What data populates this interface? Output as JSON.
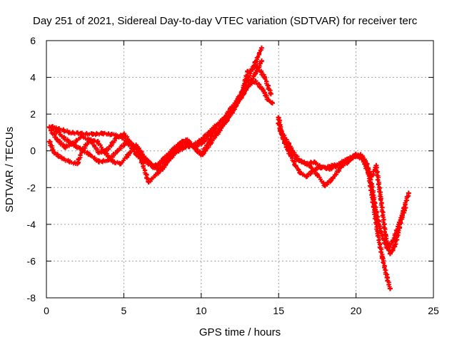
{
  "chart_data": {
    "type": "scatter",
    "title": "Day 251 of 2021, Sidereal Day-to-day VTEC variation (SDTVAR) for receiver terc",
    "xlabel": "GPS time / hours",
    "ylabel": "SDTVAR / TECUs",
    "xlim": [
      0,
      25
    ],
    "ylim": [
      -8,
      6
    ],
    "xticks": [
      "0",
      "5",
      "10",
      "15",
      "20",
      "25"
    ],
    "yticks": [
      "6",
      "4",
      "2",
      "0",
      "-2",
      "-4",
      "-6",
      "-8"
    ],
    "grid": true,
    "marker": "plus",
    "colors": {
      "series": "#ff0000",
      "grid": "#a0a0a0",
      "axis": "#000000"
    },
    "series": [
      {
        "name": "trace-1",
        "x": [
          0.2,
          0.8,
          1.5,
          2.2,
          3.0,
          3.6,
          4.2,
          4.8,
          5.3,
          5.8,
          6.3,
          6.9,
          7.5,
          8.0,
          8.5,
          9.0,
          9.5,
          10.0,
          10.5,
          11.0,
          11.5,
          12.0,
          12.5,
          13.0,
          13.5,
          13.9
        ],
        "y": [
          1.3,
          1.2,
          1.0,
          0.95,
          0.9,
          0.95,
          0.9,
          0.8,
          0.4,
          -0.2,
          -0.5,
          -0.9,
          -1.0,
          -0.4,
          0.0,
          0.2,
          0.3,
          0.6,
          1.0,
          1.4,
          1.8,
          2.2,
          3.0,
          3.9,
          4.8,
          5.6
        ]
      },
      {
        "name": "trace-2",
        "x": [
          0.2,
          0.5,
          1.0,
          1.5,
          2.0,
          2.3,
          2.8,
          3.3,
          3.8,
          4.3,
          4.8,
          5.3,
          5.8,
          6.3,
          6.7,
          7.1,
          7.6,
          8.1,
          8.6,
          9.1,
          9.6,
          10.1,
          10.6,
          11.1,
          11.6,
          12.0,
          12.5,
          13.0,
          13.5,
          13.9
        ],
        "y": [
          0.5,
          -0.1,
          -0.4,
          -0.6,
          -0.7,
          0.0,
          0.6,
          0.5,
          -0.1,
          -0.6,
          -0.7,
          -0.2,
          0.3,
          -0.3,
          -0.7,
          -0.8,
          -0.6,
          -0.1,
          0.4,
          0.6,
          0.1,
          -0.2,
          0.4,
          1.0,
          1.6,
          2.1,
          2.8,
          3.5,
          4.2,
          4.9
        ]
      },
      {
        "name": "trace-3",
        "x": [
          0.3,
          0.7,
          1.2,
          1.7,
          2.3,
          2.9,
          3.4,
          4.0,
          4.5,
          5.0,
          5.5,
          6.0,
          6.6,
          7.2,
          7.8,
          8.4,
          9.0,
          9.6,
          10.2,
          10.8,
          11.4,
          12.0,
          12.6,
          13.0,
          13.6,
          14.1,
          14.5
        ],
        "y": [
          1.1,
          0.6,
          0.2,
          0.4,
          0.8,
          0.5,
          -0.1,
          0.1,
          0.7,
          0.9,
          0.4,
          -0.2,
          -1.7,
          -1.2,
          -0.5,
          0.0,
          0.5,
          0.2,
          0.5,
          1.1,
          1.7,
          2.4,
          3.1,
          4.3,
          4.6,
          4.0,
          3.1
        ]
      },
      {
        "name": "trace-4",
        "x": [
          0.4,
          1.0,
          1.6,
          2.2,
          2.8,
          3.4,
          4.0,
          4.6,
          5.2,
          5.8,
          6.4,
          7.0,
          7.6,
          8.2,
          8.8,
          9.4,
          10.0,
          10.6,
          11.2,
          11.8,
          12.4,
          13.0,
          13.5,
          14.0,
          14.3,
          14.6
        ],
        "y": [
          1.3,
          0.8,
          0.4,
          0.1,
          -0.2,
          -0.6,
          -0.5,
          0.0,
          0.5,
          0.2,
          -0.5,
          -0.9,
          -0.4,
          0.1,
          0.5,
          0.3,
          -0.2,
          0.6,
          1.2,
          1.9,
          2.7,
          3.5,
          3.8,
          3.3,
          2.8,
          2.6
        ]
      },
      {
        "name": "trace-5",
        "x": [
          15.0,
          15.2,
          15.5,
          15.8,
          16.1,
          16.4,
          16.8,
          17.2,
          17.6,
          18.0,
          18.5,
          19.0,
          19.5,
          20.0,
          20.4,
          20.8,
          21.1,
          21.4,
          21.7,
          22.0,
          22.2
        ],
        "y": [
          1.8,
          0.9,
          0.2,
          -0.3,
          -0.8,
          -1.2,
          -1.4,
          -1.1,
          -0.9,
          -0.9,
          -0.8,
          -0.7,
          -0.5,
          -0.3,
          -0.4,
          -1.2,
          -2.8,
          -4.5,
          -5.8,
          -6.9,
          -7.5
        ]
      },
      {
        "name": "trace-6",
        "x": [
          15.0,
          15.3,
          15.7,
          16.1,
          16.5,
          17.0,
          17.5,
          18.0,
          18.5,
          19.0,
          19.5,
          20.0,
          20.5,
          21.0,
          21.3,
          21.6,
          21.9,
          22.2,
          22.5,
          22.8,
          23.1,
          23.4
        ],
        "y": [
          1.5,
          0.7,
          0.1,
          -0.4,
          -0.6,
          -0.8,
          -1.3,
          -1.9,
          -1.5,
          -0.9,
          -0.6,
          -0.2,
          -0.5,
          -1.4,
          -0.8,
          -2.6,
          -4.6,
          -5.6,
          -5.2,
          -4.2,
          -3.1,
          -2.3
        ]
      },
      {
        "name": "trace-7",
        "x": [
          15.1,
          15.5,
          15.9,
          16.3,
          16.8,
          17.3,
          17.8,
          18.3,
          18.8,
          19.3,
          19.8,
          20.3,
          20.7,
          21.0,
          21.3,
          21.6,
          22.0,
          22.4,
          22.8,
          23.2
        ],
        "y": [
          1.1,
          0.6,
          0.0,
          -0.5,
          -0.7,
          -0.6,
          -0.9,
          -1.0,
          -0.8,
          -0.5,
          -0.3,
          -0.2,
          -0.7,
          -1.8,
          -3.3,
          -4.4,
          -5.3,
          -4.9,
          -3.9,
          -3.1
        ]
      }
    ]
  }
}
